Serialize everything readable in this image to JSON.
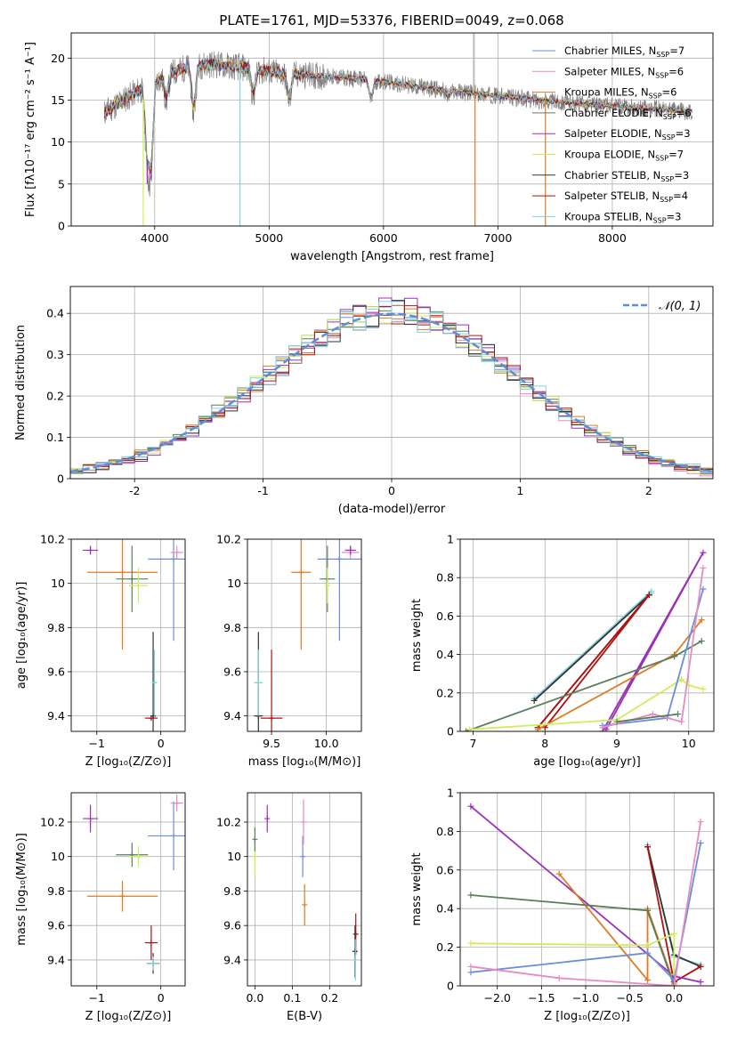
{
  "figure_title": "PLATE=1761, MJD=53376, FIBERID=0049, z=0.068",
  "colors": {
    "grid": "#b0b0b0",
    "chabrier_miles": "#6b8de0",
    "salpeter_miles": "#e88bbf",
    "kroupa_miles": "#e07b22",
    "chabrier_elodie": "#5a7d5a",
    "salpeter_elodie": "#9b30b8",
    "kroupa_elodie": "#cdee5a",
    "chabrier_stelib": "#333333",
    "salpeter_stelib": "#b01010",
    "kroupa_stelib": "#7fd3dd",
    "data": "#808080",
    "normal": "#5b8fd9"
  },
  "chart_data": [
    {
      "id": "spectrum",
      "type": "line",
      "xlabel": "wavelength [Angstrom, rest frame]",
      "ylabel": "Flux [fλ10⁻¹⁷ erg cm⁻² s⁻¹ A⁻¹]",
      "xlim": [
        3270,
        8880
      ],
      "ylim": [
        0,
        23
      ],
      "xticks": [
        4000,
        5000,
        6000,
        7000,
        8000
      ],
      "yticks": [
        0,
        5,
        10,
        15,
        20
      ],
      "legend_position": "top-right",
      "legend": [
        {
          "key": "chabrier_miles",
          "label": "Chabrier MILES, N",
          "sub": "SSP",
          "eq": "=7"
        },
        {
          "key": "salpeter_miles",
          "label": "Salpeter MILES, N",
          "sub": "SSP",
          "eq": "=6"
        },
        {
          "key": "kroupa_miles",
          "label": "Kroupa MILES, N",
          "sub": "SSP",
          "eq": "=6"
        },
        {
          "key": "chabrier_elodie",
          "label": "Chabrier ELODIE, N",
          "sub": "SSP",
          "eq": "=6"
        },
        {
          "key": "salpeter_elodie",
          "label": "Salpeter ELODIE, N",
          "sub": "SSP",
          "eq": "=3"
        },
        {
          "key": "kroupa_elodie",
          "label": "Kroupa ELODIE, N",
          "sub": "SSP",
          "eq": "=7"
        },
        {
          "key": "chabrier_stelib",
          "label": "Chabrier STELIB, N",
          "sub": "SSP",
          "eq": "=3"
        },
        {
          "key": "salpeter_stelib",
          "label": "Salpeter STELIB, N",
          "sub": "SSP",
          "eq": "=4"
        },
        {
          "key": "kroupa_stelib",
          "label": "Kroupa STELIB, N",
          "sub": "SSP",
          "eq": "=3"
        }
      ],
      "continuum": {
        "x": [
          3560,
          3700,
          3900,
          4100,
          4300,
          4500,
          4700,
          4900,
          5100,
          5300,
          5500,
          5800,
          6000,
          6200,
          6500,
          6800,
          7000,
          7200,
          7500,
          7800,
          8000,
          8300,
          8500,
          8700
        ],
        "y": [
          13.5,
          14.8,
          16.5,
          18.0,
          19.0,
          19.3,
          19.0,
          18.6,
          18.2,
          18.0,
          17.8,
          17.5,
          17.2,
          16.8,
          16.2,
          15.8,
          15.5,
          15.2,
          14.8,
          14.5,
          14.3,
          14.0,
          13.8,
          13.6
        ]
      },
      "features": [
        {
          "x": 3933,
          "y": 8.0
        },
        {
          "x": 3969,
          "y": 6.5
        },
        {
          "x": 4102,
          "y": 15.0
        },
        {
          "x": 4340,
          "y": 13.5
        },
        {
          "x": 4861,
          "y": 15.5
        },
        {
          "x": 5175,
          "y": 15.0
        },
        {
          "x": 5890,
          "y": 15.0
        },
        {
          "x": 6563,
          "y": 15.5
        }
      ],
      "model_dropouts": [
        {
          "key": "kroupa_elodie",
          "x": 3900,
          "y": 0
        },
        {
          "key": "salpeter_elodie",
          "x": 3935,
          "y": 5.0
        },
        {
          "key": "salpeter_elodie",
          "x": 3965,
          "y": 5.5
        },
        {
          "key": "kroupa_stelib",
          "x": 4745,
          "y": 0
        },
        {
          "key": "kroupa_miles",
          "x": 6800,
          "y": 0
        },
        {
          "key": "kroupa_miles",
          "x": 7415,
          "y": 0
        }
      ],
      "data_spike": {
        "x": 6790,
        "y": 23
      }
    },
    {
      "id": "residuals",
      "type": "histogram",
      "xlabel": "(data-model)/error",
      "ylabel": "Normed distribution",
      "xlim": [
        -2.5,
        2.5
      ],
      "ylim": [
        0,
        0.465
      ],
      "xticks": [
        -2,
        -1,
        0,
        1,
        2
      ],
      "yticks": [
        0.0,
        0.1,
        0.2,
        0.3,
        0.4
      ],
      "bins": {
        "start": -2.5,
        "width": 0.1,
        "count": 50
      },
      "legend_position": "top-right",
      "normal_label": "𝒩(0, 1)",
      "series": [
        {
          "key": "chabrier_miles",
          "amp": 0.395,
          "sigma": 0.99,
          "seed": 1
        },
        {
          "key": "salpeter_miles",
          "amp": 0.405,
          "sigma": 0.97,
          "seed": 2
        },
        {
          "key": "kroupa_miles",
          "amp": 0.4,
          "sigma": 1.0,
          "seed": 3
        },
        {
          "key": "chabrier_elodie",
          "amp": 0.398,
          "sigma": 1.02,
          "seed": 4
        },
        {
          "key": "salpeter_elodie",
          "amp": 0.41,
          "sigma": 0.96,
          "seed": 5
        },
        {
          "key": "kroupa_elodie",
          "amp": 0.4,
          "sigma": 1.0,
          "seed": 6
        },
        {
          "key": "chabrier_stelib",
          "amp": 0.4,
          "sigma": 0.98,
          "seed": 7
        },
        {
          "key": "salpeter_stelib",
          "amp": 0.402,
          "sigma": 0.99,
          "seed": 8
        },
        {
          "key": "kroupa_stelib",
          "amp": 0.395,
          "sigma": 1.01,
          "seed": 9
        }
      ]
    },
    {
      "id": "age_vs_Z",
      "type": "scatter",
      "xlabel": "Z [log₁₀(Z/Z⊙)]",
      "ylabel": "age  [log₁₀(age/yr)]",
      "xlim": [
        -1.4,
        0.38
      ],
      "ylim": [
        9.33,
        10.2
      ],
      "xticks": [
        {
          "v": -1,
          "t": "−1"
        },
        {
          "v": 0,
          "t": "0"
        }
      ],
      "yticks": [
        9.4,
        9.6,
        9.8,
        10.0,
        10.2
      ],
      "points": [
        {
          "key": "salpeter_elodie",
          "x": -1.1,
          "y": 10.15,
          "xerr": 0.12,
          "yerr": 0.02
        },
        {
          "key": "kroupa_miles",
          "x": -0.6,
          "y": 10.05,
          "xerr": 0.55,
          "yerr": 0.35
        },
        {
          "key": "chabrier_elodie",
          "x": -0.45,
          "y": 10.02,
          "xerr": 0.25,
          "yerr": 0.15
        },
        {
          "key": "kroupa_elodie",
          "x": -0.35,
          "y": 9.99,
          "xerr": 0.15,
          "yerr": 0.08
        },
        {
          "key": "chabrier_miles",
          "x": 0.2,
          "y": 10.11,
          "xerr": 0.4,
          "yerr": 0.37
        },
        {
          "key": "salpeter_miles",
          "x": 0.25,
          "y": 10.14,
          "xerr": 0.1,
          "yerr": 0.03
        },
        {
          "key": "salpeter_stelib",
          "x": -0.15,
          "y": 9.39,
          "xerr": 0.1,
          "yerr": 0.0
        },
        {
          "key": "chabrier_stelib",
          "x": -0.12,
          "y": 9.4,
          "xerr": 0.04,
          "yerr": 0.38
        },
        {
          "key": "kroupa_stelib",
          "x": -0.1,
          "y": 9.55,
          "xerr": 0.03,
          "yerr": 0.15
        }
      ]
    },
    {
      "id": "age_vs_mass",
      "type": "scatter",
      "xlabel": "mass [log₁₀(M/M⊙)]",
      "ylabel": "",
      "xlim": [
        9.28,
        10.32
      ],
      "ylim": [
        9.33,
        10.2
      ],
      "xticks": [
        {
          "v": 9.5,
          "t": "9.5"
        },
        {
          "v": 10.0,
          "t": "10.0"
        }
      ],
      "yticks": [
        9.4,
        9.6,
        9.8,
        10.0,
        10.2
      ],
      "points": [
        {
          "key": "kroupa_miles",
          "x": 9.77,
          "y": 10.05,
          "xerr": 0.09,
          "yerr": 0.35
        },
        {
          "key": "chabrier_miles",
          "x": 10.12,
          "y": 10.11,
          "xerr": 0.2,
          "yerr": 0.37
        },
        {
          "key": "chabrier_elodie",
          "x": 10.01,
          "y": 10.02,
          "xerr": 0.07,
          "yerr": 0.15
        },
        {
          "key": "kroupa_elodie",
          "x": 10.01,
          "y": 9.99,
          "xerr": 0.02,
          "yerr": 0.08
        },
        {
          "key": "salpeter_miles",
          "x": 10.22,
          "y": 10.14,
          "xerr": 0.08,
          "yerr": 0.03
        },
        {
          "key": "salpeter_elodie",
          "x": 10.22,
          "y": 10.15,
          "xerr": 0.05,
          "yerr": 0.02
        },
        {
          "key": "salpeter_stelib",
          "x": 9.5,
          "y": 9.39,
          "xerr": 0.1,
          "yerr": 0.31
        },
        {
          "key": "chabrier_stelib",
          "x": 9.38,
          "y": 9.4,
          "xerr": 0.04,
          "yerr": 0.38
        },
        {
          "key": "kroupa_stelib",
          "x": 9.38,
          "y": 9.55,
          "xerr": 0.04,
          "yerr": 0.15
        }
      ]
    },
    {
      "id": "weight_vs_age",
      "type": "line",
      "xlabel": "age  [log₁₀(age/yr)]",
      "ylabel": "mass weight",
      "xlim": [
        6.82,
        10.35
      ],
      "ylim": [
        0,
        1.0
      ],
      "xticks": [
        {
          "v": 7,
          "t": "7"
        },
        {
          "v": 8,
          "t": "8"
        },
        {
          "v": 9,
          "t": "9"
        },
        {
          "v": 10,
          "t": "10"
        }
      ],
      "yticks": [
        0.0,
        0.2,
        0.4,
        0.6,
        0.8,
        1.0
      ],
      "series": [
        {
          "key": "kroupa_stelib",
          "x": [
            7.85,
            9.48,
            7.85,
            9.48
          ],
          "y": [
            0.17,
            0.73,
            0.17,
            0.72
          ]
        },
        {
          "key": "chabrier_stelib",
          "x": [
            7.85,
            9.45,
            7.9
          ],
          "y": [
            0.16,
            0.71,
            0.02
          ]
        },
        {
          "key": "salpeter_stelib",
          "x": [
            7.9,
            9.45,
            8.0
          ],
          "y": [
            0.02,
            0.71,
            0.02
          ]
        },
        {
          "key": "salpeter_elodie",
          "x": [
            8.8,
            10.2,
            8.85
          ],
          "y": [
            0.0,
            0.93,
            0.01
          ]
        },
        {
          "key": "kroupa_miles",
          "x": [
            7.9,
            9.8,
            10.18
          ],
          "y": [
            0.01,
            0.4,
            0.58
          ]
        },
        {
          "key": "chabrier_elodie",
          "x": [
            6.9,
            9.8,
            10.18
          ],
          "y": [
            0.0,
            0.39,
            0.47
          ]
        },
        {
          "key": "kroupa_elodie",
          "x": [
            6.95,
            9.0,
            9.9,
            10.0,
            10.2
          ],
          "y": [
            0.01,
            0.06,
            0.27,
            0.24,
            0.22
          ]
        },
        {
          "key": "chabrier_miles",
          "x": [
            8.8,
            9.7,
            10.2
          ],
          "y": [
            0.03,
            0.07,
            0.74
          ]
        },
        {
          "key": "salpeter_miles",
          "x": [
            8.8,
            9.5,
            9.9,
            10.2
          ],
          "y": [
            0.02,
            0.09,
            0.05,
            0.85
          ]
        },
        {
          "key": "chabrier_elodie",
          "x": [
            9.0,
            9.85
          ],
          "y": [
            0.05,
            0.09
          ]
        }
      ]
    },
    {
      "id": "mass_vs_Z",
      "type": "scatter",
      "xlabel": "Z [log₁₀(Z/Z⊙)]",
      "ylabel": "mass [log₁₀(M/M⊙)]",
      "xlim": [
        -1.4,
        0.38
      ],
      "ylim": [
        9.25,
        10.37
      ],
      "xticks": [
        {
          "v": -1,
          "t": "−1"
        },
        {
          "v": 0,
          "t": "0"
        }
      ],
      "yticks": [
        9.4,
        9.6,
        9.8,
        10.0,
        10.2
      ],
      "points": [
        {
          "key": "salpeter_elodie",
          "x": -1.1,
          "y": 10.22,
          "xerr": 0.12,
          "yerr": 0.08
        },
        {
          "key": "chabrier_miles",
          "x": 0.2,
          "y": 10.12,
          "xerr": 0.4,
          "yerr": 0.2
        },
        {
          "key": "chabrier_elodie",
          "x": -0.45,
          "y": 10.01,
          "xerr": 0.25,
          "yerr": 0.07
        },
        {
          "key": "kroupa_elodie",
          "x": -0.35,
          "y": 10.0,
          "xerr": 0.15,
          "yerr": 0.06
        },
        {
          "key": "salpeter_miles",
          "x": 0.25,
          "y": 10.31,
          "xerr": 0.1,
          "yerr": 0.05
        },
        {
          "key": "kroupa_miles",
          "x": -0.6,
          "y": 9.77,
          "xerr": 0.55,
          "yerr": 0.09
        },
        {
          "key": "salpeter_stelib",
          "x": -0.15,
          "y": 9.5,
          "xerr": 0.1,
          "yerr": 0.1
        },
        {
          "key": "chabrier_stelib",
          "x": -0.12,
          "y": 9.38,
          "xerr": 0.1,
          "yerr": 0.06
        },
        {
          "key": "kroupa_stelib",
          "x": -0.12,
          "y": 9.38,
          "xerr": 0.1,
          "yerr": 0.04
        }
      ]
    },
    {
      "id": "mass_vs_ebv",
      "type": "scatter",
      "xlabel": "E(B-V)",
      "ylabel": "",
      "xlim": [
        -0.02,
        0.285
      ],
      "ylim": [
        9.25,
        10.37
      ],
      "xticks": [
        {
          "v": 0.0,
          "t": "0.0"
        },
        {
          "v": 0.1,
          "t": "0.1"
        },
        {
          "v": 0.2,
          "t": "0.2"
        }
      ],
      "yticks": [
        9.4,
        9.6,
        9.8,
        10.0,
        10.2
      ],
      "points": [
        {
          "key": "kroupa_elodie",
          "x": 0.0,
          "y": 10.0,
          "xerr": 0.0,
          "yerr": 0.12
        },
        {
          "key": "chabrier_elodie",
          "x": 0.0,
          "y": 10.1,
          "xerr": 0.0,
          "yerr": 0.07
        },
        {
          "key": "salpeter_elodie",
          "x": 0.033,
          "y": 10.22,
          "xerr": 0.0,
          "yerr": 0.08
        },
        {
          "key": "chabrier_miles",
          "x": 0.128,
          "y": 10.0,
          "xerr": 0.0,
          "yerr": 0.12
        },
        {
          "key": "salpeter_miles",
          "x": 0.13,
          "y": 10.2,
          "xerr": 0.0,
          "yerr": 0.13
        },
        {
          "key": "kroupa_miles",
          "x": 0.133,
          "y": 9.72,
          "xerr": 0.0,
          "yerr": 0.12
        },
        {
          "key": "salpeter_stelib",
          "x": 0.27,
          "y": 9.55,
          "xerr": 0.0,
          "yerr": 0.12
        },
        {
          "key": "chabrier_stelib",
          "x": 0.268,
          "y": 9.45,
          "xerr": 0.0,
          "yerr": 0.15
        },
        {
          "key": "kroupa_stelib",
          "x": 0.269,
          "y": 9.4,
          "xerr": 0.0,
          "yerr": 0.12
        }
      ]
    },
    {
      "id": "weight_vs_Z",
      "type": "line",
      "xlabel": "Z [log₁₀(Z/Z⊙)]",
      "ylabel": "mass weight",
      "xlim": [
        -2.42,
        0.45
      ],
      "ylim": [
        0,
        1.0
      ],
      "xticks": [
        {
          "v": -2.0,
          "t": "−2.0"
        },
        {
          "v": -1.5,
          "t": "−1.5"
        },
        {
          "v": -1.0,
          "t": "−1.0"
        },
        {
          "v": -0.5,
          "t": "−0.5"
        },
        {
          "v": 0.0,
          "t": "0.0"
        }
      ],
      "yticks": [
        0.0,
        0.2,
        0.4,
        0.6,
        0.8,
        1.0
      ],
      "series": [
        {
          "key": "kroupa_stelib",
          "x": [
            -0.3,
            0.0,
            0.3
          ],
          "y": [
            0.73,
            0.15,
            0.11
          ]
        },
        {
          "key": "chabrier_stelib",
          "x": [
            -0.3,
            0.0,
            0.3
          ],
          "y": [
            0.72,
            0.16,
            0.1
          ]
        },
        {
          "key": "salpeter_stelib",
          "x": [
            -0.3,
            0.0,
            0.3
          ],
          "y": [
            0.72,
            0.02,
            0.1
          ]
        },
        {
          "key": "salpeter_elodie",
          "x": [
            -2.3,
            0.0,
            0.3
          ],
          "y": [
            0.93,
            0.05,
            0.02
          ]
        },
        {
          "key": "kroupa_miles",
          "x": [
            -1.3,
            -0.3,
            -0.3,
            0.0
          ],
          "y": [
            0.58,
            0.03,
            0.4,
            0.01
          ]
        },
        {
          "key": "chabrier_elodie",
          "x": [
            -2.3,
            -0.3,
            0.0
          ],
          "y": [
            0.47,
            0.39,
            0.0
          ]
        },
        {
          "key": "kroupa_elodie",
          "x": [
            -2.3,
            -0.3,
            0.0,
            0.0
          ],
          "y": [
            0.22,
            0.21,
            0.27,
            0.06
          ]
        },
        {
          "key": "chabrier_miles",
          "x": [
            -2.3,
            -0.3,
            0.0,
            0.3
          ],
          "y": [
            0.07,
            0.17,
            0.03,
            0.74
          ]
        },
        {
          "key": "salpeter_miles",
          "x": [
            -2.3,
            -1.3,
            0.0,
            0.3
          ],
          "y": [
            0.1,
            0.04,
            0.0,
            0.85
          ]
        }
      ]
    }
  ]
}
